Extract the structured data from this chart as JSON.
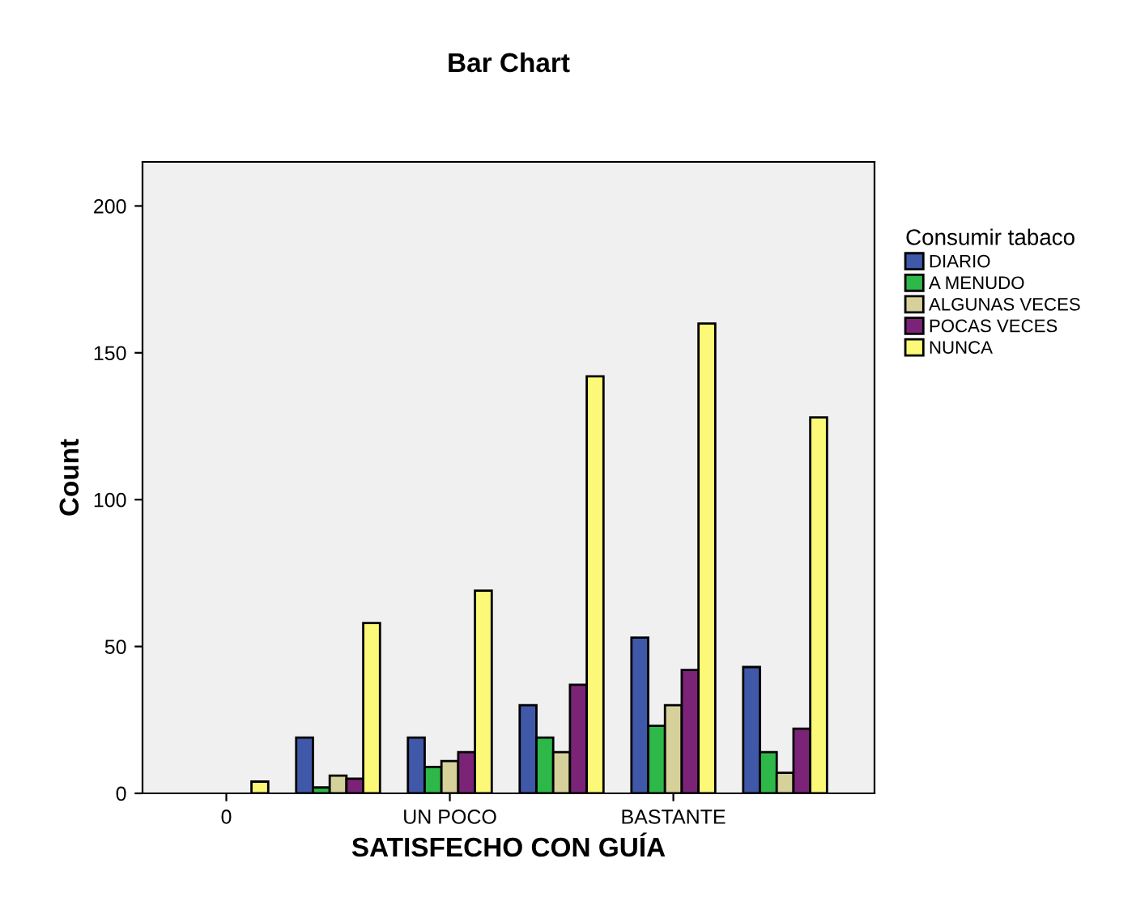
{
  "chart_data": {
    "type": "bar",
    "title": "Bar Chart",
    "xlabel": "SATISFECHO CON GUÍA",
    "ylabel": "Count",
    "legend_title": "Consumir tabaco",
    "categories": [
      "0",
      null,
      "UN POCO",
      null,
      "BASTANTE",
      null
    ],
    "series": [
      {
        "name": "DIARIO",
        "color": "#3f58a8",
        "values": [
          null,
          19,
          19,
          30,
          53,
          43
        ]
      },
      {
        "name": "A MENUDO",
        "color": "#2eb84a",
        "values": [
          null,
          2,
          9,
          19,
          23,
          14
        ]
      },
      {
        "name": "ALGUNAS VECES",
        "color": "#d6d19a",
        "values": [
          null,
          6,
          11,
          14,
          30,
          7
        ]
      },
      {
        "name": "POCAS VECES",
        "color": "#7b2477",
        "values": [
          null,
          5,
          14,
          37,
          42,
          22
        ]
      },
      {
        "name": "NUNCA",
        "color": "#fbf977",
        "values": [
          4,
          58,
          69,
          142,
          160,
          128
        ]
      }
    ],
    "ylim": [
      0,
      215
    ],
    "yticks": [
      0,
      50,
      100,
      150,
      200
    ],
    "grid": false,
    "legend": "right"
  }
}
